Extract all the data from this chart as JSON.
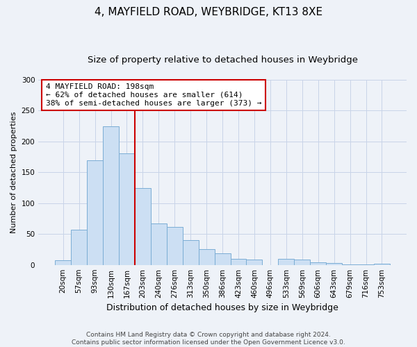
{
  "title": "4, MAYFIELD ROAD, WEYBRIDGE, KT13 8XE",
  "subtitle": "Size of property relative to detached houses in Weybridge",
  "xlabel": "Distribution of detached houses by size in Weybridge",
  "ylabel": "Number of detached properties",
  "bin_labels": [
    "20sqm",
    "57sqm",
    "93sqm",
    "130sqm",
    "167sqm",
    "203sqm",
    "240sqm",
    "276sqm",
    "313sqm",
    "350sqm",
    "386sqm",
    "423sqm",
    "460sqm",
    "496sqm",
    "533sqm",
    "569sqm",
    "606sqm",
    "643sqm",
    "679sqm",
    "716sqm",
    "753sqm"
  ],
  "bar_heights": [
    7,
    57,
    170,
    225,
    181,
    124,
    67,
    61,
    40,
    25,
    19,
    10,
    9,
    0,
    10,
    9,
    4,
    3,
    1,
    1,
    2
  ],
  "bar_color": "#ccdff3",
  "bar_edge_color": "#7aadd4",
  "annotation_text": "4 MAYFIELD ROAD: 198sqm\n← 62% of detached houses are smaller (614)\n38% of semi-detached houses are larger (373) →",
  "vline_color": "#cc0000",
  "annotation_box_edge_color": "#cc0000",
  "annotation_box_face_color": "#ffffff",
  "ylim": [
    0,
    300
  ],
  "yticks": [
    0,
    50,
    100,
    150,
    200,
    250,
    300
  ],
  "footer_line1": "Contains HM Land Registry data © Crown copyright and database right 2024.",
  "footer_line2": "Contains public sector information licensed under the Open Government Licence v3.0.",
  "background_color": "#eef2f8",
  "plot_bg_color": "#eef2f8",
  "grid_color": "#c8d4e8",
  "title_fontsize": 11,
  "subtitle_fontsize": 9.5,
  "xlabel_fontsize": 9,
  "ylabel_fontsize": 8,
  "tick_fontsize": 7.5,
  "footer_fontsize": 6.5,
  "annotation_fontsize": 8
}
